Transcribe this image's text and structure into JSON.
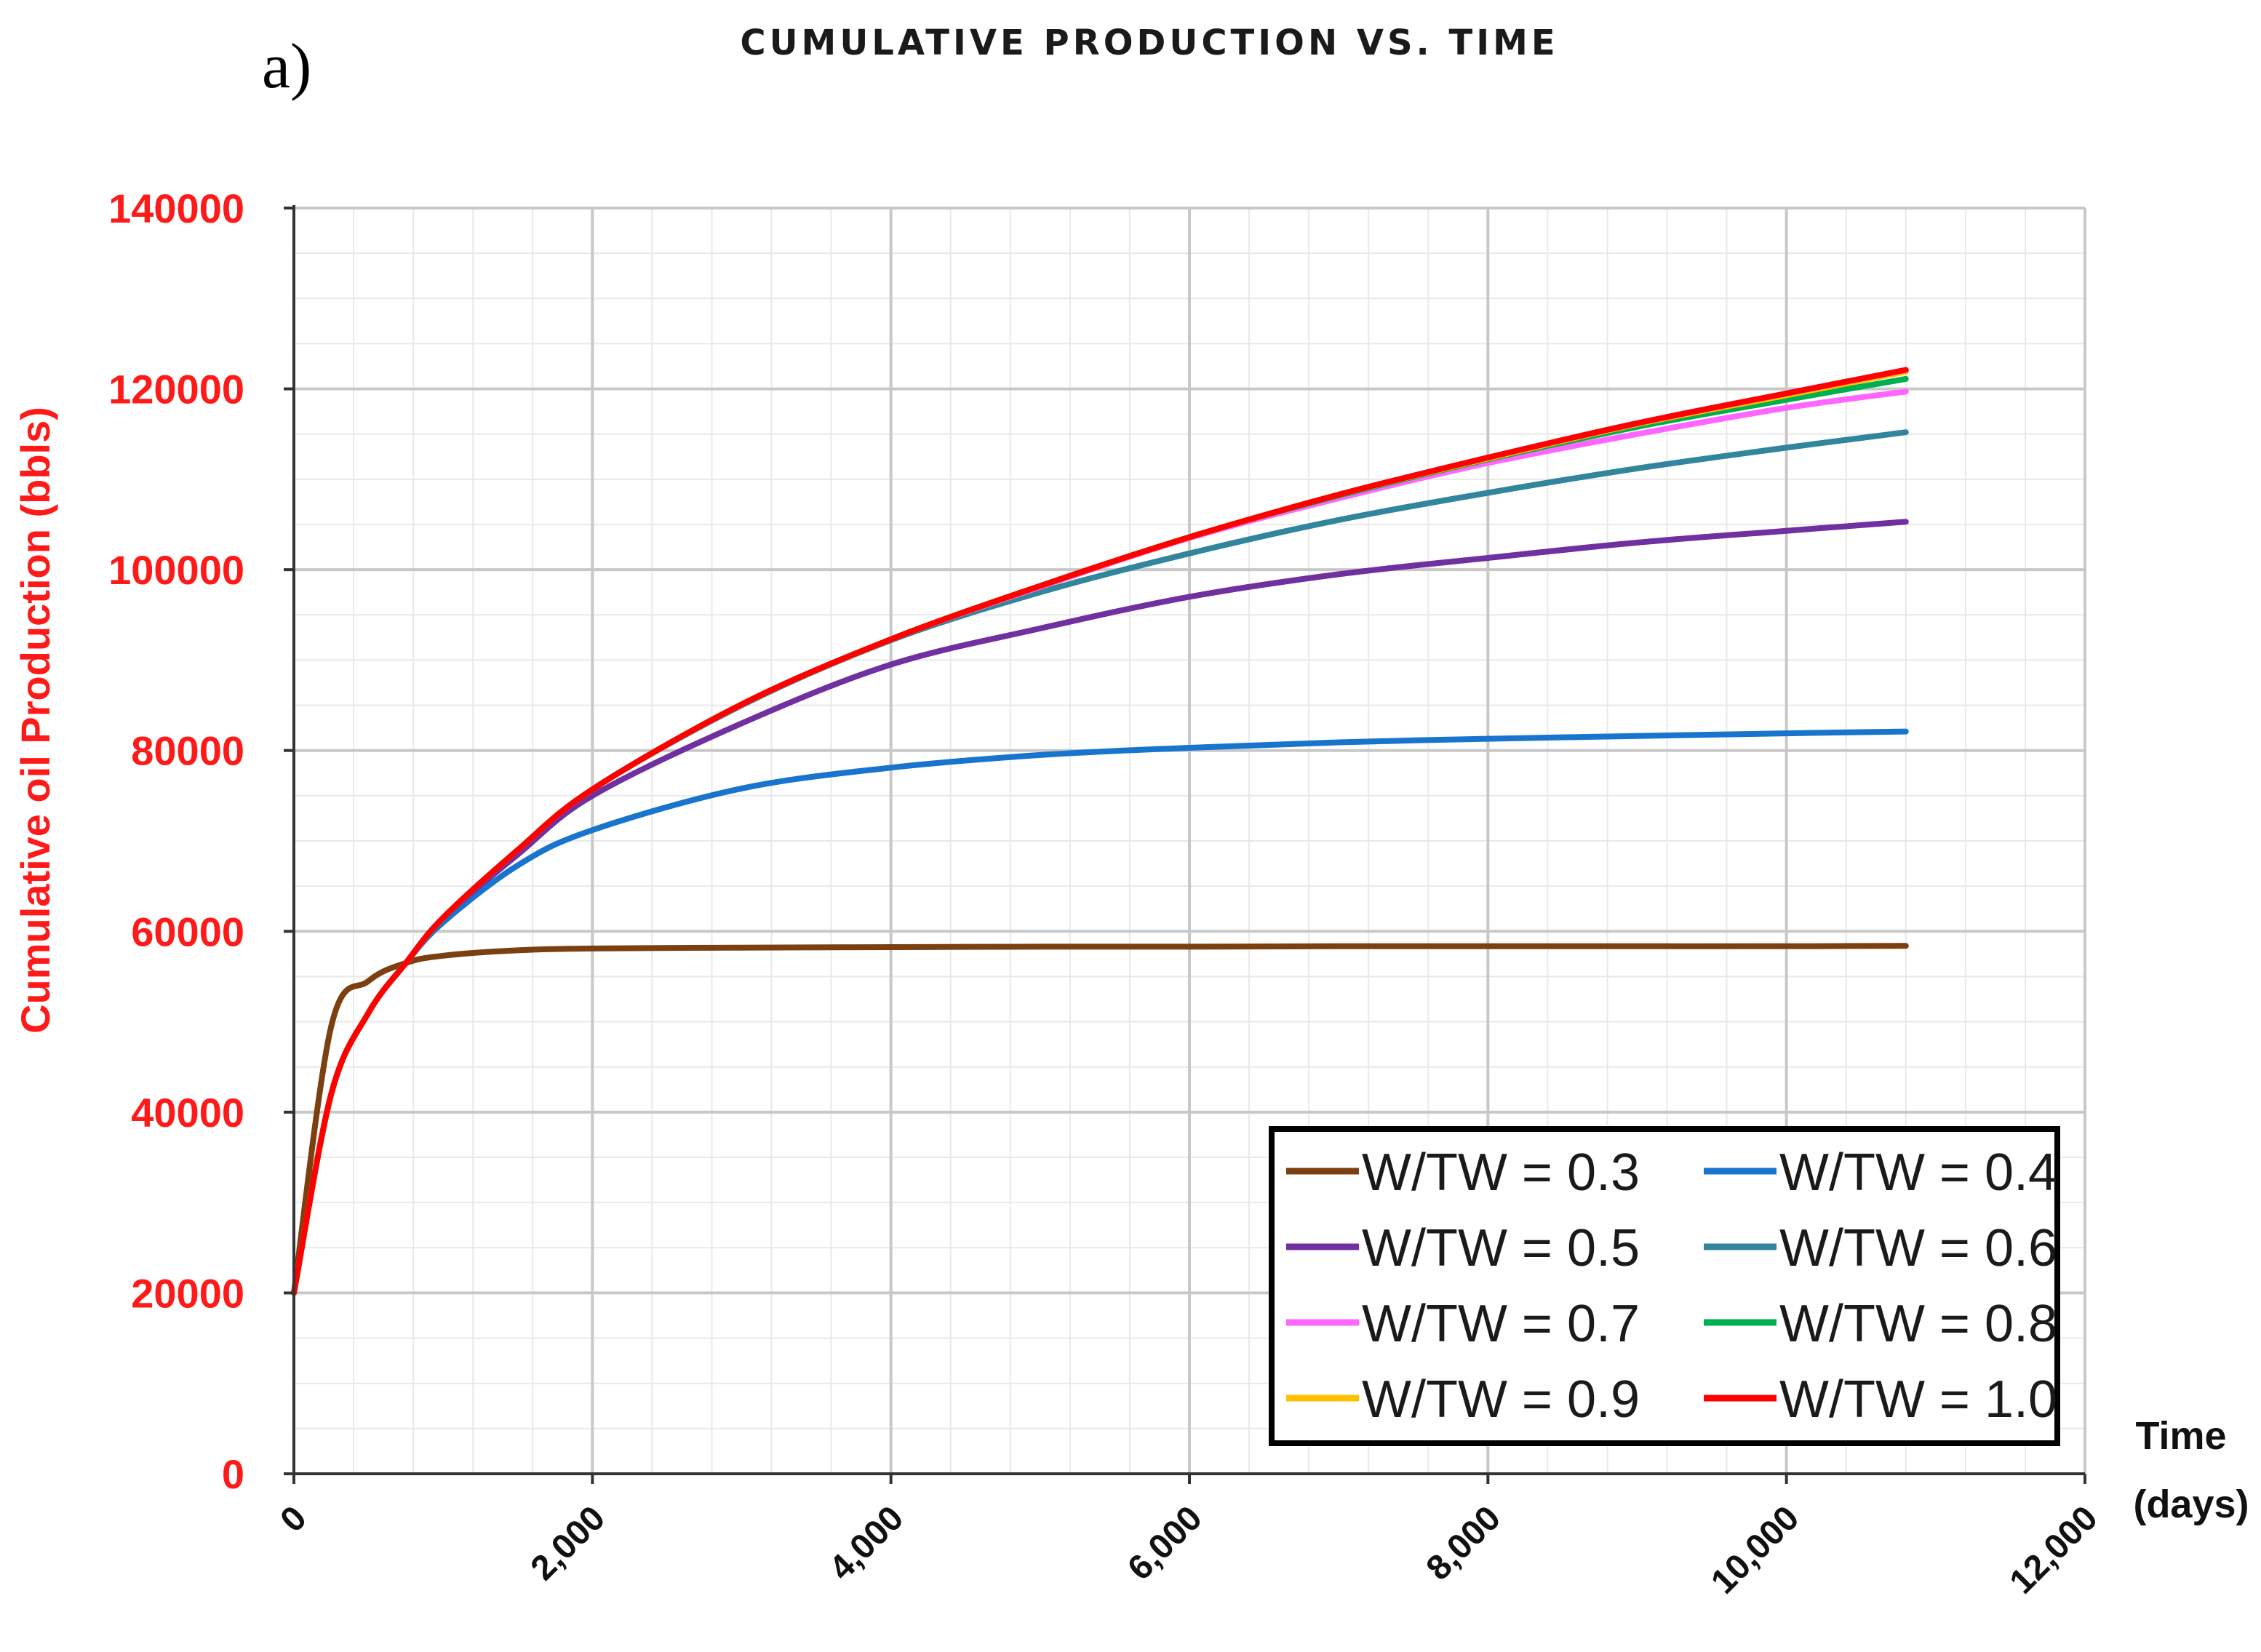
{
  "panel_label": "a)",
  "chart_data": {
    "type": "line",
    "title": "CUMULATIVE  PRODUCTION  VS.  TIME",
    "xlabel": [
      "Time",
      "(days)"
    ],
    "ylabel": "Cumulative oil Production  (bbls)",
    "xlim": [
      0,
      12000
    ],
    "ylim": [
      0,
      140000
    ],
    "xticks": [
      0,
      2000,
      4000,
      6000,
      8000,
      10000,
      12000
    ],
    "xtick_labels": [
      "0",
      "2,000",
      "4,000",
      "6,000",
      "8,000",
      "10,000",
      "12,000"
    ],
    "yticks": [
      0,
      20000,
      40000,
      60000,
      80000,
      100000,
      120000,
      140000
    ],
    "ytick_labels": [
      "0",
      "20000",
      "40000",
      "60000",
      "80000",
      "100000",
      "120000",
      "140000"
    ],
    "grid": true,
    "legend_position": "bottom-right",
    "x": [
      0,
      250,
      500,
      750,
      1000,
      1500,
      2000,
      3000,
      4000,
      5000,
      6000,
      7000,
      8000,
      9000,
      10000,
      10800
    ],
    "series": [
      {
        "name": "W/TW = 0.3",
        "color": "#7b3f10",
        "values": [
          20000,
          49500,
          54500,
          56500,
          57300,
          57900,
          58100,
          58200,
          58250,
          58300,
          58300,
          58350,
          58350,
          58350,
          58350,
          58400
        ]
      },
      {
        "name": "W/TW = 0.4",
        "color": "#1874cd",
        "values": [
          20000,
          42000,
          51000,
          56500,
          61000,
          67300,
          71200,
          75800,
          78100,
          79500,
          80300,
          80900,
          81300,
          81600,
          81900,
          82100
        ]
      },
      {
        "name": "W/TW = 0.5",
        "color": "#7030a0",
        "values": [
          20000,
          42000,
          51000,
          56500,
          61500,
          68500,
          75000,
          83000,
          89500,
          93500,
          97000,
          99500,
          101300,
          103000,
          104300,
          105300
        ]
      },
      {
        "name": "W/TW = 0.6",
        "color": "#31859c",
        "values": [
          20000,
          42000,
          51000,
          56500,
          61500,
          69000,
          75700,
          85000,
          92200,
          97500,
          101800,
          105500,
          108500,
          111200,
          113500,
          115200
        ]
      },
      {
        "name": "W/TW = 0.7",
        "color": "#ff66ff",
        "values": [
          20000,
          42000,
          51000,
          56500,
          61500,
          69000,
          75700,
          85100,
          92300,
          98100,
          103500,
          107900,
          111800,
          115000,
          117900,
          119700
        ]
      },
      {
        "name": "W/TW = 0.8",
        "color": "#00b050",
        "values": [
          20000,
          42000,
          51000,
          56500,
          61500,
          69000,
          75700,
          85100,
          92300,
          98200,
          103600,
          108200,
          112200,
          115800,
          118800,
          121100
        ]
      },
      {
        "name": "W/TW = 0.9",
        "color": "#ffc000",
        "values": [
          20000,
          42000,
          51000,
          56500,
          61500,
          69000,
          75700,
          85100,
          92300,
          98200,
          103600,
          108300,
          112300,
          116100,
          119300,
          121900
        ]
      },
      {
        "name": "W/TW = 1.0",
        "color": "#ff0000",
        "values": [
          20000,
          42000,
          51000,
          56500,
          61500,
          69000,
          75700,
          85100,
          92300,
          98200,
          103600,
          108300,
          112400,
          116200,
          119500,
          122100
        ]
      }
    ]
  }
}
